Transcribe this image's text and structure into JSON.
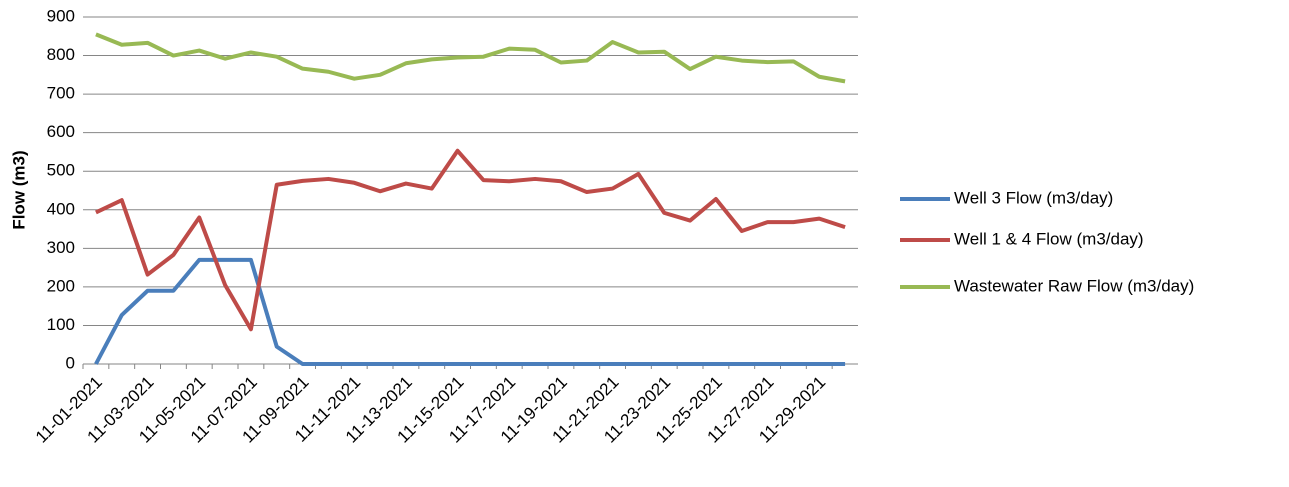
{
  "chart_data": {
    "type": "line",
    "y_label": "Flow (m3)",
    "categories": [
      "11-01-2021",
      null,
      "11-03-2021",
      null,
      "11-05-2021",
      null,
      "11-07-2021",
      null,
      "11-09-2021",
      null,
      "11-11-2021",
      null,
      "11-13-2021",
      null,
      "11-15-2021",
      null,
      "11-17-2021",
      null,
      "11-19-2021",
      null,
      "11-21-2021",
      null,
      "11-23-2021",
      null,
      "11-25-2021",
      null,
      "11-27-2021",
      null,
      "11-29-2021",
      null
    ],
    "series": [
      {
        "name": "Well 3 Flow (m3/day)",
        "color": "#4a7ebb",
        "values": [
          0,
          127,
          190,
          190,
          270,
          270,
          270,
          45,
          0,
          0,
          0,
          0,
          0,
          0,
          0,
          0,
          0,
          0,
          0,
          0,
          0,
          0,
          0,
          0,
          0,
          0,
          0,
          0,
          0,
          0
        ]
      },
      {
        "name": "Well 1 & 4 Flow (m3/day)",
        "color": "#be4b48",
        "values": [
          393,
          425,
          232,
          283,
          380,
          205,
          90,
          465,
          475,
          480,
          470,
          448,
          468,
          455,
          553,
          477,
          474,
          480,
          474,
          446,
          455,
          493,
          392,
          372,
          428,
          345,
          368,
          368,
          377,
          355
        ]
      },
      {
        "name": "Wastewater Raw Flow (m3/day)",
        "color": "#98b954",
        "values": [
          855,
          828,
          833,
          800,
          813,
          792,
          808,
          797,
          766,
          758,
          740,
          750,
          780,
          790,
          795,
          797,
          818,
          815,
          782,
          787,
          835,
          808,
          810,
          765,
          797,
          787,
          783,
          785,
          745,
          733
        ]
      }
    ],
    "ylim": [
      0,
      900
    ],
    "yticks": [
      0,
      100,
      200,
      300,
      400,
      500,
      600,
      700,
      800,
      900
    ],
    "grid": true,
    "legend": "right"
  }
}
